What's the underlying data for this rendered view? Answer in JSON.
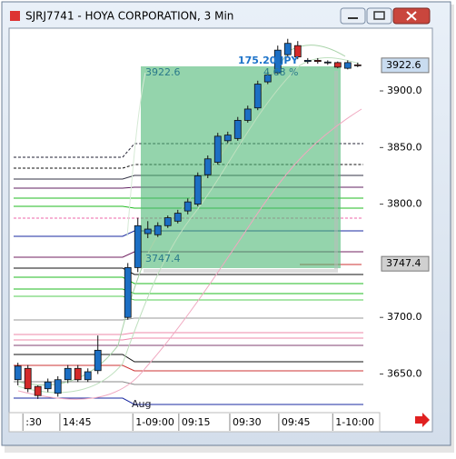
{
  "window": {
    "title": "SJRJ7741 - HOYA CORPORATION, 3 Min"
  },
  "chart_data": {
    "type": "candlestick",
    "x": [
      0,
      1,
      2,
      3,
      4,
      5,
      6,
      7,
      8,
      11,
      12,
      13,
      14,
      15,
      16,
      17,
      18,
      19,
      20,
      21,
      22,
      23,
      24,
      25,
      26,
      27,
      28,
      29,
      30,
      31,
      32,
      33,
      34
    ],
    "open": [
      3645,
      3655,
      3639,
      3637,
      3633,
      3645,
      3655,
      3645,
      3653,
      3700,
      3744,
      3774,
      3773,
      3781,
      3785,
      3794,
      3800,
      3826,
      3837,
      3856,
      3858,
      3874,
      3885,
      3908,
      3916,
      3932,
      3940,
      3926,
      3927,
      3925,
      3925,
      3920,
      3923
    ],
    "high": [
      3660,
      3658,
      3640,
      3646,
      3648,
      3658,
      3658,
      3655,
      3684,
      3748,
      3788,
      3785,
      3784,
      3790,
      3795,
      3805,
      3828,
      3843,
      3863,
      3864,
      3877,
      3887,
      3909,
      3917,
      3940,
      3946,
      3944,
      3929,
      3929,
      3927,
      3926,
      3927,
      3925
    ],
    "low": [
      3640,
      3634,
      3628,
      3634,
      3630,
      3642,
      3643,
      3643,
      3650,
      3698,
      3740,
      3770,
      3771,
      3779,
      3783,
      3791,
      3798,
      3823,
      3835,
      3854,
      3856,
      3872,
      3883,
      3906,
      3914,
      3930,
      3928,
      3924,
      3924,
      3923,
      3920,
      3919,
      3921
    ],
    "close": [
      3657,
      3637,
      3631,
      3643,
      3645,
      3655,
      3645,
      3652,
      3671,
      3744,
      3781,
      3778,
      3781,
      3788,
      3792,
      3802,
      3825,
      3840,
      3860,
      3861,
      3874,
      3884,
      3906,
      3914,
      3936,
      3942,
      3930,
      3927,
      3926,
      3925.5,
      3921,
      3925,
      3922.6
    ],
    "up_color": "#1c6fc4",
    "down_color": "#d42a2a",
    "xlim": [
      -0.7,
      36.2
    ],
    "xticks": [
      {
        "value": 0.5,
        "label": ":30"
      },
      {
        "value": 4.2,
        "label": "14:45"
      },
      {
        "value": 11.5,
        "label": "1-09:00"
      },
      {
        "value": 16.1,
        "label": "09:15"
      },
      {
        "value": 21.2,
        "label": "09:30"
      },
      {
        "value": 26.1,
        "label": "09:45"
      },
      {
        "value": 31.5,
        "label": "1-10:00"
      }
    ],
    "ylim": [
      3617.5,
      3954.6
    ],
    "yticks": [
      {
        "value": 3650,
        "label": "3650.0"
      },
      {
        "value": 3700,
        "label": "3700.0"
      },
      {
        "value": 3800,
        "label": "3800.0"
      },
      {
        "value": 3850,
        "label": "3850.0"
      },
      {
        "value": 3900,
        "label": "3900.0"
      }
    ],
    "price_markers": [
      3922.6,
      3747.4
    ],
    "measure": {
      "top": 3922.6,
      "bottom": 3747.4,
      "change": "175.20 JPY",
      "percent": "4.68 %"
    },
    "session_label": "Aug"
  }
}
